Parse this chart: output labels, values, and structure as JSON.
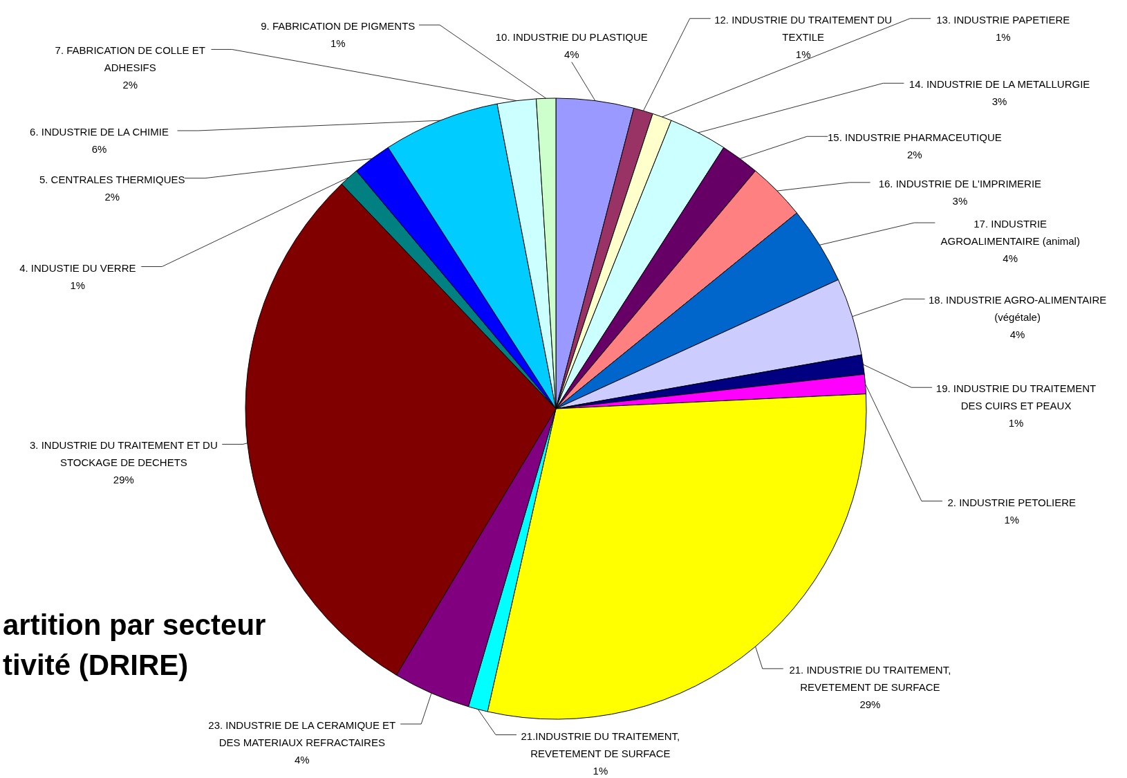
{
  "chart_data": {
    "type": "pie",
    "title": "artition par secteur\ntivité (DRIRE)",
    "categories": [
      "10. INDUSTRIE DU PLASTIQUE",
      "12. INDUSTRIE DU TRAITEMENT DU TEXTILE",
      "13. INDUSTRIE PAPETIERE",
      "14. INDUSTRIE DE LA METALLURGIE",
      "15. INDUSTRIE PHARMACEUTIQUE",
      "16. INDUSTRIE DE L'IMPRIMERIE",
      "17. INDUSTRIE AGROALIMENTAIRE (animal)",
      "18. INDUSTRIE AGRO-ALIMENTAIRE (végétale)",
      "19. INDUSTRIE DU TRAITEMENT DES CUIRS ET PEAUX",
      "2. INDUSTRIE PETOLIERE",
      "21. INDUSTRIE DU TRAITEMENT, REVETEMENT DE SURFACE",
      "21.INDUSTRIE DU TRAITEMENT, REVETEMENT DE SURFACE",
      "23. INDUSTRIE DE LA CERAMIQUE ET DES MATERIAUX REFRACTAIRES",
      "3. INDUSTRIE DU TRAITEMENT ET DU STOCKAGE DE DECHETS",
      "4. INDUSTIE DU VERRE",
      "5. CENTRALES THERMIQUES",
      "6. INDUSTRIE DE LA CHIMIE",
      "7. FABRICATION DE COLLE ET ADHESIFS",
      "9. FABRICATION DE PIGMENTS"
    ],
    "values": [
      4,
      1,
      1,
      3,
      2,
      3,
      4,
      4,
      1,
      1,
      29,
      1,
      4,
      29,
      1,
      2,
      6,
      2,
      1
    ],
    "value_labels": [
      "4%",
      "1%",
      "1%",
      "3%",
      "2%",
      "3%",
      "4%",
      "4%",
      "1%",
      "1%",
      "29%",
      "1%",
      "4%",
      "29%",
      "1%",
      "2%",
      "6%",
      "2%",
      "1%"
    ],
    "colors": [
      "#9999ff",
      "#993366",
      "#ffffcc",
      "#ccffff",
      "#660066",
      "#ff8080",
      "#0066cc",
      "#ccccff",
      "#000080",
      "#ff00ff",
      "#ffff00",
      "#00ffff",
      "#800080",
      "#800000",
      "#008080",
      "#0000ff",
      "#00ccff",
      "#ccffff",
      "#ccffcc"
    ],
    "legend": false
  }
}
